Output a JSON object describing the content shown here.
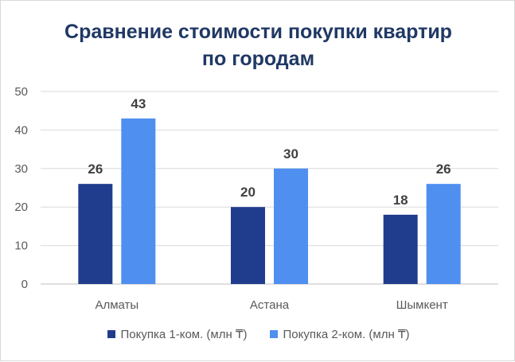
{
  "title_line1": "Сравнение стоимости покупки квартир",
  "title_line2": "по городам",
  "chart_data": {
    "type": "bar",
    "categories": [
      "Алматы",
      "Астана",
      "Шымкент"
    ],
    "series": [
      {
        "name": "Покупка 1-ком. (млн ₸)",
        "values": [
          26,
          20,
          18
        ],
        "color": "#203c8c"
      },
      {
        "name": "Покупка 2-ком. (млн ₸)",
        "values": [
          43,
          30,
          26
        ],
        "color": "#4f8ff0"
      }
    ],
    "ylim": [
      0,
      50
    ],
    "yticks": [
      0,
      10,
      20,
      30,
      40,
      50
    ],
    "grid": true,
    "legend": "bottom",
    "data_labels": true
  }
}
